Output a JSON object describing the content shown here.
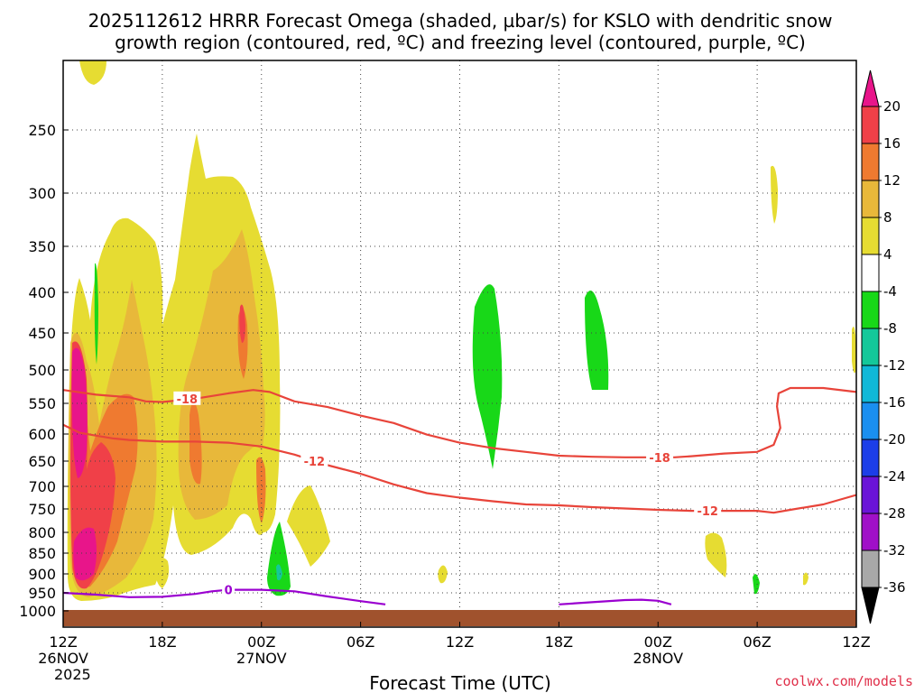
{
  "title": {
    "line1": "2025112612 HRRR Forecast Omega (shaded, µbar/s) for KSLO with dendritic snow",
    "line2": "growth region (contoured, red, ºC) and freezing level (contoured, purple, ºC)"
  },
  "credit": "coolwx.com/models",
  "colors": {
    "temp_contour": "#e8443a",
    "freezing_contour": "#9a00d0",
    "ground": "#a0522d",
    "pink": "#e8158a",
    "red": "#f04048",
    "orange": "#ee8a2e",
    "gold": "#e8b83a",
    "yellow": "#e6dc32",
    "green": "#18d818"
  },
  "chart_data": {
    "type": "time-height shaded contour",
    "xlabel": "Forecast Time (UTC)",
    "x_ticks": [
      {
        "hour": 0,
        "label": "12Z",
        "date": "26NOV",
        "year": "2025"
      },
      {
        "hour": 6,
        "label": "18Z"
      },
      {
        "hour": 12,
        "label": "00Z",
        "date": "27NOV"
      },
      {
        "hour": 18,
        "label": "06Z"
      },
      {
        "hour": 24,
        "label": "12Z"
      },
      {
        "hour": 30,
        "label": "18Z"
      },
      {
        "hour": 36,
        "label": "00Z",
        "date": "28NOV"
      },
      {
        "hour": 42,
        "label": "06Z"
      },
      {
        "hour": 48,
        "label": "12Z"
      }
    ],
    "xlim": [
      0,
      48
    ],
    "y_axis": "pressure (hPa), inverted",
    "y_ticks": [
      250,
      300,
      350,
      400,
      450,
      500,
      550,
      600,
      650,
      700,
      750,
      800,
      850,
      900,
      950,
      1000
    ],
    "ylim_hPa": [
      1015,
      200
    ],
    "grid": true,
    "colorbar": {
      "unit": "µbar/s",
      "labels": [
        "20",
        "16",
        "12",
        "8",
        "4",
        "-4",
        "-8",
        "-12",
        "-16",
        "-20",
        "-24",
        "-28",
        "-32",
        "-36"
      ],
      "bins": [
        {
          "range": "16 to 20",
          "color": "#f04048"
        },
        {
          "range": "12 to 16",
          "color": "#ef7a30"
        },
        {
          "range": "8 to 12",
          "color": "#e8b83a"
        },
        {
          "range": "4 to 8",
          "color": "#e6dc32"
        },
        {
          "range": "-4 to 4",
          "color": "#ffffff"
        },
        {
          "range": "-8 to -4",
          "color": "#18d818"
        },
        {
          "range": "-12 to -8",
          "color": "#14c89a"
        },
        {
          "range": "-16 to -12",
          "color": "#10b8d8"
        },
        {
          "range": "-20 to -16",
          "color": "#1a8ff0"
        },
        {
          "range": "-24 to -20",
          "color": "#1c3ee8"
        },
        {
          "range": "-28 to -24",
          "color": "#6a14d8"
        },
        {
          "range": "-32 to -28",
          "color": "#a010c8"
        },
        {
          "range": "-36 to -32",
          "color": "#a8a8a8"
        }
      ],
      "top_arrow_color": "#e8158a",
      "bottom_arrow_color": "#000000"
    },
    "contours": [
      {
        "value": -18,
        "label": "-18",
        "color": "#e8443a",
        "points": [
          [
            0,
            530
          ],
          [
            2,
            537
          ],
          [
            4,
            541
          ],
          [
            5,
            547
          ],
          [
            6,
            548
          ],
          [
            8,
            543
          ],
          [
            10,
            535
          ],
          [
            11.5,
            530
          ],
          [
            12.5,
            533
          ],
          [
            14,
            547
          ],
          [
            16,
            556
          ],
          [
            18,
            570
          ],
          [
            20,
            582
          ],
          [
            22,
            601
          ],
          [
            24,
            616
          ],
          [
            26,
            626
          ],
          [
            28,
            633
          ],
          [
            30,
            640
          ],
          [
            32,
            642
          ],
          [
            34,
            643
          ],
          [
            36,
            643
          ],
          [
            37,
            643
          ],
          [
            38,
            641
          ],
          [
            40,
            636
          ],
          [
            42,
            633
          ],
          [
            43,
            620
          ],
          [
            43.4,
            590
          ],
          [
            43.2,
            555
          ],
          [
            43.3,
            535
          ],
          [
            44,
            527
          ],
          [
            46,
            527
          ],
          [
            48,
            533
          ]
        ],
        "label_at": [
          [
            7.5,
            543
          ],
          [
            36.1,
            643
          ]
        ]
      },
      {
        "value": -12,
        "label": "-12",
        "color": "#e8443a",
        "points": [
          [
            0,
            585
          ],
          [
            1,
            598
          ],
          [
            2,
            603
          ],
          [
            3,
            608
          ],
          [
            4,
            611
          ],
          [
            6,
            614
          ],
          [
            8,
            614
          ],
          [
            10,
            616
          ],
          [
            12,
            623
          ],
          [
            14,
            638
          ],
          [
            16,
            658
          ],
          [
            18,
            675
          ],
          [
            20,
            696
          ],
          [
            22,
            715
          ],
          [
            24,
            725
          ],
          [
            26,
            733
          ],
          [
            28,
            740
          ],
          [
            30,
            742
          ],
          [
            32,
            746
          ],
          [
            34,
            749
          ],
          [
            36,
            752
          ],
          [
            38,
            754
          ],
          [
            40,
            754
          ],
          [
            42,
            754
          ],
          [
            43,
            758
          ],
          [
            44,
            752
          ],
          [
            46,
            740
          ],
          [
            48,
            719
          ]
        ],
        "label_at": [
          [
            15.2,
            650
          ],
          [
            39,
            754
          ]
        ]
      },
      {
        "value": 0,
        "label": "0",
        "color": "#9a00d0",
        "points": [
          [
            0,
            950
          ],
          [
            2,
            955
          ],
          [
            4,
            962
          ],
          [
            6,
            961
          ],
          [
            8,
            953
          ],
          [
            9,
            946
          ],
          [
            10,
            942
          ],
          [
            12,
            942
          ],
          [
            14,
            946
          ],
          [
            16,
            960
          ],
          [
            18,
            973
          ],
          [
            19.5,
            982
          ]
        ],
        "label_at": [
          [
            10,
            942
          ]
        ]
      },
      {
        "value": 0,
        "label": "",
        "color": "#9a00d0",
        "points": [
          [
            30,
            982
          ],
          [
            32,
            976
          ],
          [
            34,
            970
          ],
          [
            35,
            969
          ],
          [
            36,
            972
          ],
          [
            36.8,
            982
          ]
        ],
        "label_at": []
      }
    ]
  }
}
